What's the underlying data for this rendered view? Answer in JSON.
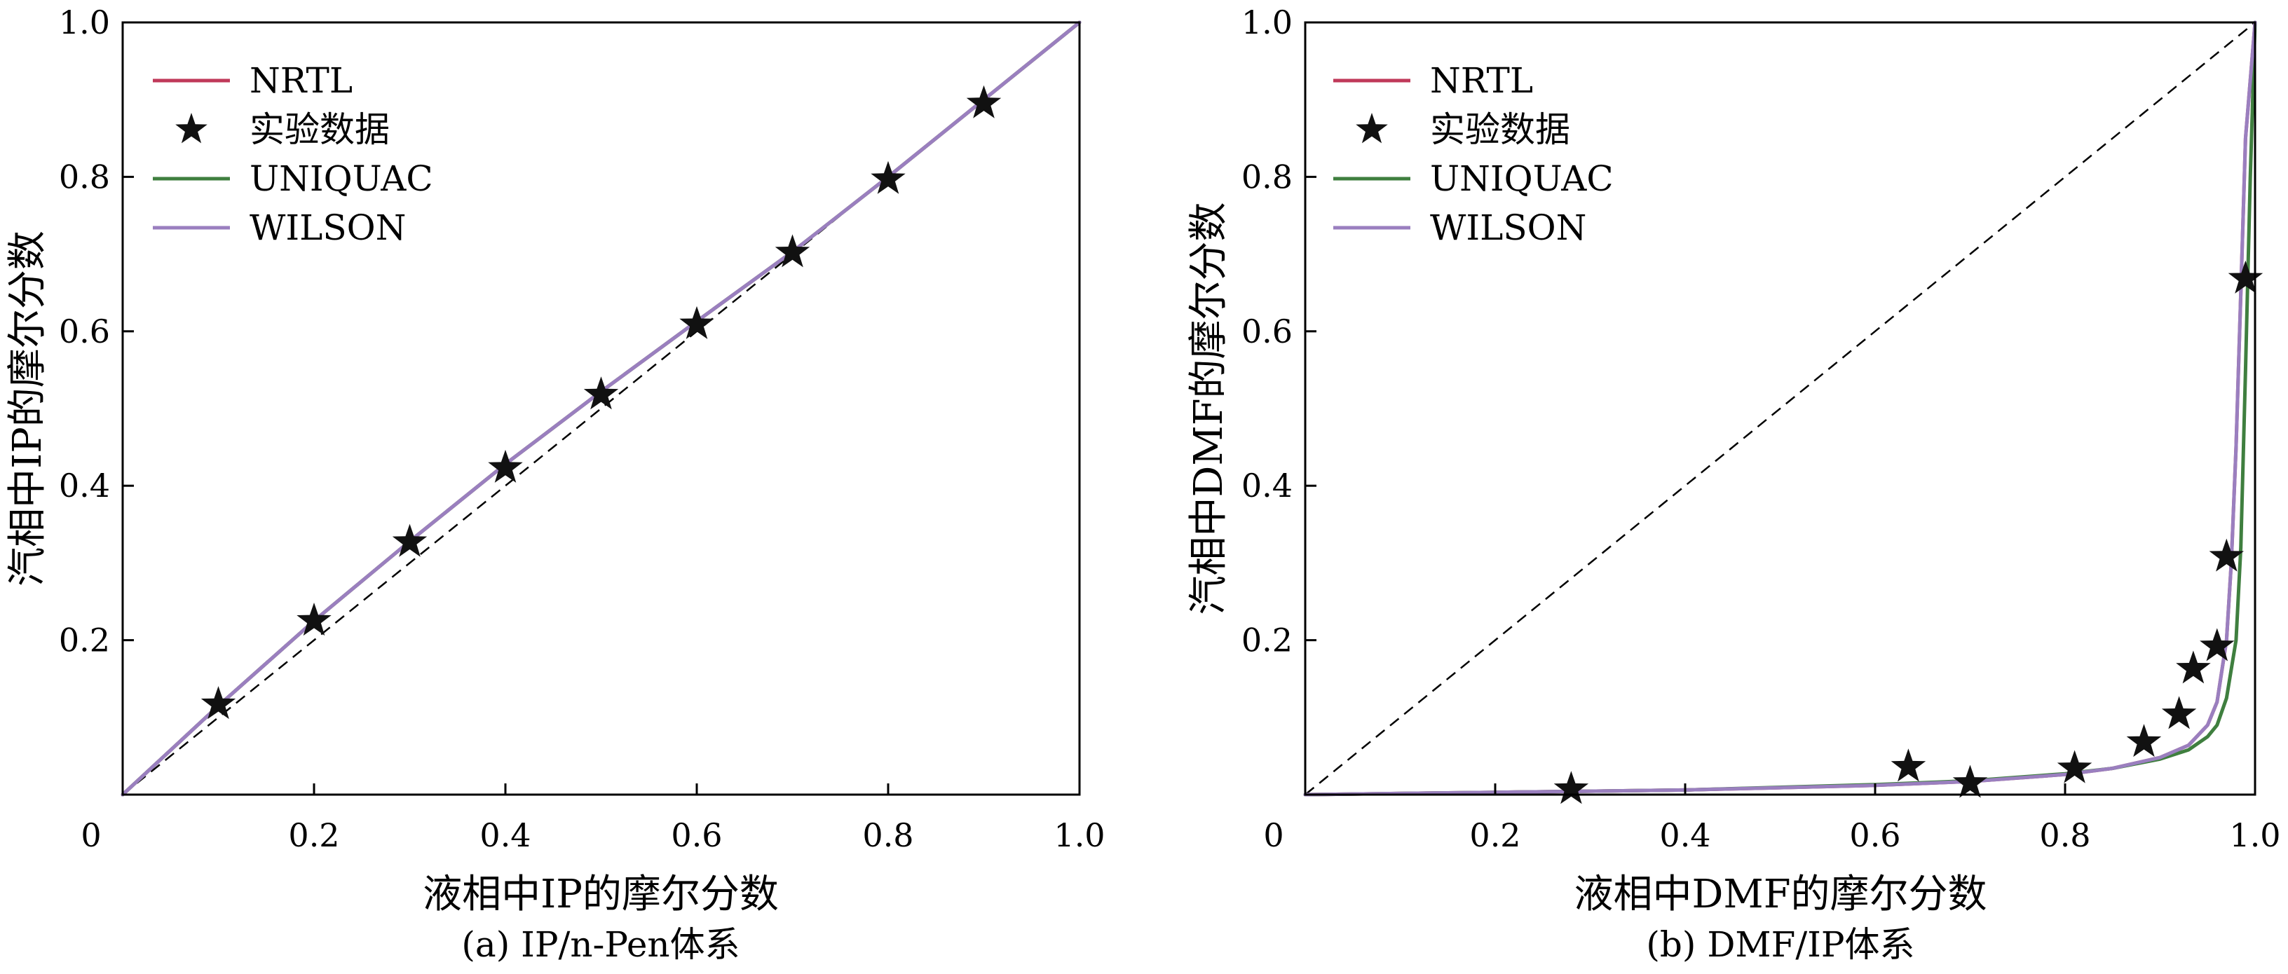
{
  "chart_data": [
    {
      "type": "line",
      "caption": "(a) IP/n-Pen体系",
      "xlabel": "液相中IP的摩尔分数",
      "ylabel": "汽相中IP的摩尔分数",
      "xlim": [
        0,
        1.0
      ],
      "ylim": [
        0,
        1.0
      ],
      "xticks": [
        "0",
        "0.2",
        "0.4",
        "0.6",
        "0.8",
        "1.0"
      ],
      "yticks": [
        "0.2",
        "0.4",
        "0.6",
        "0.8",
        "1.0"
      ],
      "grid": false,
      "legend_position": "top-left",
      "diagonal": true,
      "series": [
        {
          "name": "NRTL",
          "kind": "line",
          "color": "#c0395a",
          "x": [
            0,
            0.1,
            0.2,
            0.3,
            0.4,
            0.5,
            0.6,
            0.7,
            0.8,
            0.9,
            1.0
          ],
          "y": [
            0,
            0.115,
            0.225,
            0.328,
            0.428,
            0.522,
            0.613,
            0.703,
            0.8,
            0.9,
            1.0
          ]
        },
        {
          "name": "实验数据",
          "kind": "scatter",
          "marker": "star",
          "color": "#111111",
          "x": [
            0.1,
            0.2,
            0.3,
            0.4,
            0.5,
            0.6,
            0.7,
            0.8,
            0.9
          ],
          "y": [
            0.117,
            0.225,
            0.327,
            0.423,
            0.518,
            0.609,
            0.702,
            0.797,
            0.895
          ]
        },
        {
          "name": "UNIQUAC",
          "kind": "line",
          "color": "#3f7f3f",
          "x": [
            0,
            0.1,
            0.2,
            0.3,
            0.4,
            0.5,
            0.6,
            0.7,
            0.8,
            0.9,
            1.0
          ],
          "y": [
            0,
            0.115,
            0.225,
            0.328,
            0.428,
            0.522,
            0.613,
            0.703,
            0.8,
            0.9,
            1.0
          ]
        },
        {
          "name": "WILSON",
          "kind": "line",
          "color": "#9a7fbf",
          "x": [
            0,
            0.1,
            0.2,
            0.3,
            0.4,
            0.5,
            0.6,
            0.7,
            0.8,
            0.9,
            1.0
          ],
          "y": [
            0,
            0.115,
            0.225,
            0.328,
            0.428,
            0.522,
            0.613,
            0.703,
            0.8,
            0.9,
            1.0
          ]
        }
      ]
    },
    {
      "type": "line",
      "caption": "(b) DMF/IP体系",
      "xlabel": "液相中DMF的摩尔分数",
      "ylabel": "汽相中DMF的摩尔分数",
      "xlim": [
        0,
        1.0
      ],
      "ylim": [
        0,
        1.0
      ],
      "xticks": [
        "0",
        "0.2",
        "0.4",
        "0.6",
        "0.8",
        "1.0"
      ],
      "yticks": [
        "0.2",
        "0.4",
        "0.6",
        "0.8",
        "1.0"
      ],
      "grid": false,
      "legend_position": "top-left",
      "diagonal": true,
      "series": [
        {
          "name": "NRTL",
          "kind": "line",
          "color": "#c0395a",
          "x": [
            0,
            0.2,
            0.4,
            0.6,
            0.7,
            0.8,
            0.85,
            0.9,
            0.93,
            0.95,
            0.96,
            0.97,
            0.975,
            0.98,
            0.985,
            0.99,
            1.0
          ],
          "y": [
            0,
            0.003,
            0.006,
            0.012,
            0.017,
            0.026,
            0.034,
            0.048,
            0.064,
            0.09,
            0.12,
            0.2,
            0.3,
            0.45,
            0.65,
            0.85,
            1.0
          ]
        },
        {
          "name": "实验数据",
          "kind": "scatter",
          "marker": "star",
          "color": "#111111",
          "x": [
            0.28,
            0.635,
            0.7,
            0.81,
            0.883,
            0.92,
            0.935,
            0.96,
            0.97,
            0.99
          ],
          "y": [
            0.007,
            0.036,
            0.015,
            0.034,
            0.068,
            0.104,
            0.163,
            0.192,
            0.308,
            0.668
          ]
        },
        {
          "name": "UNIQUAC",
          "kind": "line",
          "color": "#3f7f3f",
          "x": [
            0,
            0.2,
            0.4,
            0.6,
            0.7,
            0.8,
            0.85,
            0.9,
            0.93,
            0.95,
            0.96,
            0.97,
            0.98,
            0.985,
            0.99,
            0.995,
            1.0
          ],
          "y": [
            0,
            0.003,
            0.006,
            0.013,
            0.018,
            0.027,
            0.034,
            0.046,
            0.058,
            0.075,
            0.09,
            0.125,
            0.2,
            0.32,
            0.55,
            0.8,
            1.0
          ]
        },
        {
          "name": "WILSON",
          "kind": "line",
          "color": "#9a7fbf",
          "x": [
            0,
            0.2,
            0.4,
            0.6,
            0.7,
            0.8,
            0.85,
            0.9,
            0.93,
            0.95,
            0.96,
            0.97,
            0.975,
            0.98,
            0.985,
            0.99,
            1.0
          ],
          "y": [
            0,
            0.003,
            0.006,
            0.012,
            0.017,
            0.026,
            0.034,
            0.048,
            0.064,
            0.09,
            0.12,
            0.2,
            0.3,
            0.45,
            0.65,
            0.85,
            1.0
          ]
        }
      ]
    }
  ]
}
